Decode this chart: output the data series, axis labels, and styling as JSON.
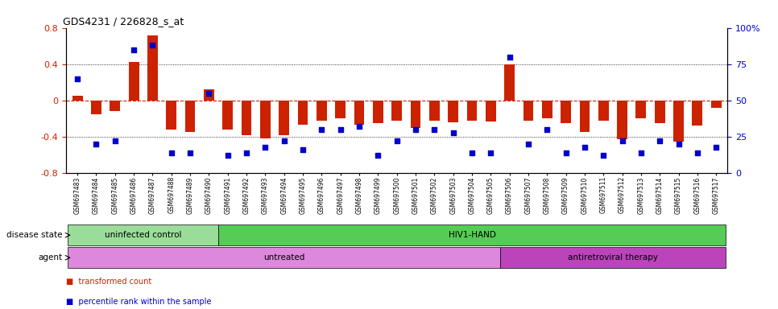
{
  "title": "GDS4231 / 226828_s_at",
  "samples": [
    "GSM697483",
    "GSM697484",
    "GSM697485",
    "GSM697486",
    "GSM697487",
    "GSM697488",
    "GSM697489",
    "GSM697490",
    "GSM697491",
    "GSM697492",
    "GSM697493",
    "GSM697494",
    "GSM697495",
    "GSM697496",
    "GSM697497",
    "GSM697498",
    "GSM697499",
    "GSM697500",
    "GSM697501",
    "GSM697502",
    "GSM697503",
    "GSM697504",
    "GSM697505",
    "GSM697506",
    "GSM697507",
    "GSM697508",
    "GSM697509",
    "GSM697510",
    "GSM697511",
    "GSM697512",
    "GSM697513",
    "GSM697514",
    "GSM697515",
    "GSM697516",
    "GSM697517"
  ],
  "transformed_count": [
    0.05,
    -0.15,
    -0.12,
    0.42,
    0.72,
    -0.32,
    -0.35,
    0.12,
    -0.32,
    -0.38,
    -0.42,
    -0.38,
    -0.27,
    -0.22,
    -0.2,
    -0.27,
    -0.25,
    -0.22,
    -0.3,
    -0.22,
    -0.24,
    -0.22,
    -0.23,
    0.4,
    -0.22,
    -0.2,
    -0.25,
    -0.35,
    -0.22,
    -0.43,
    -0.2,
    -0.25,
    -0.45,
    -0.28,
    -0.08
  ],
  "percentile_rank": [
    65,
    20,
    22,
    85,
    88,
    14,
    14,
    55,
    12,
    14,
    18,
    22,
    16,
    30,
    30,
    32,
    12,
    22,
    30,
    30,
    28,
    14,
    14,
    80,
    20,
    30,
    14,
    18,
    12,
    22,
    14,
    22,
    20,
    14,
    18
  ],
  "ylim_left": [
    -0.8,
    0.8
  ],
  "ylim_right": [
    0,
    100
  ],
  "bar_color": "#cc2200",
  "dot_color": "#0000cc",
  "disease_state_groups": [
    {
      "label": "uninfected control",
      "start": 0,
      "end": 8,
      "color": "#99dd99"
    },
    {
      "label": "HIV1-HAND",
      "start": 8,
      "end": 35,
      "color": "#55cc55"
    }
  ],
  "agent_groups": [
    {
      "label": "untreated",
      "start": 0,
      "end": 23,
      "color": "#dd88dd"
    },
    {
      "label": "antiretroviral therapy",
      "start": 23,
      "end": 35,
      "color": "#bb44bb"
    }
  ],
  "legend_items": [
    {
      "label": "transformed count",
      "color": "#cc2200"
    },
    {
      "label": "percentile rank within the sample",
      "color": "#0000cc"
    }
  ],
  "yticks_left": [
    -0.8,
    -0.4,
    0.0,
    0.4,
    0.8
  ],
  "ytick_labels_left": [
    "-0.8",
    "-0.4",
    "0",
    "0.4",
    "0.8"
  ],
  "yticks_right": [
    0,
    25,
    50,
    75,
    100
  ],
  "ytick_labels_right": [
    "0",
    "25",
    "50",
    "75",
    "100%"
  ],
  "disease_state_label": "disease state",
  "agent_label": "agent",
  "background_color": "#ffffff",
  "hline_zero_color": "#cc2200",
  "hline_dotted_color": "#000000"
}
